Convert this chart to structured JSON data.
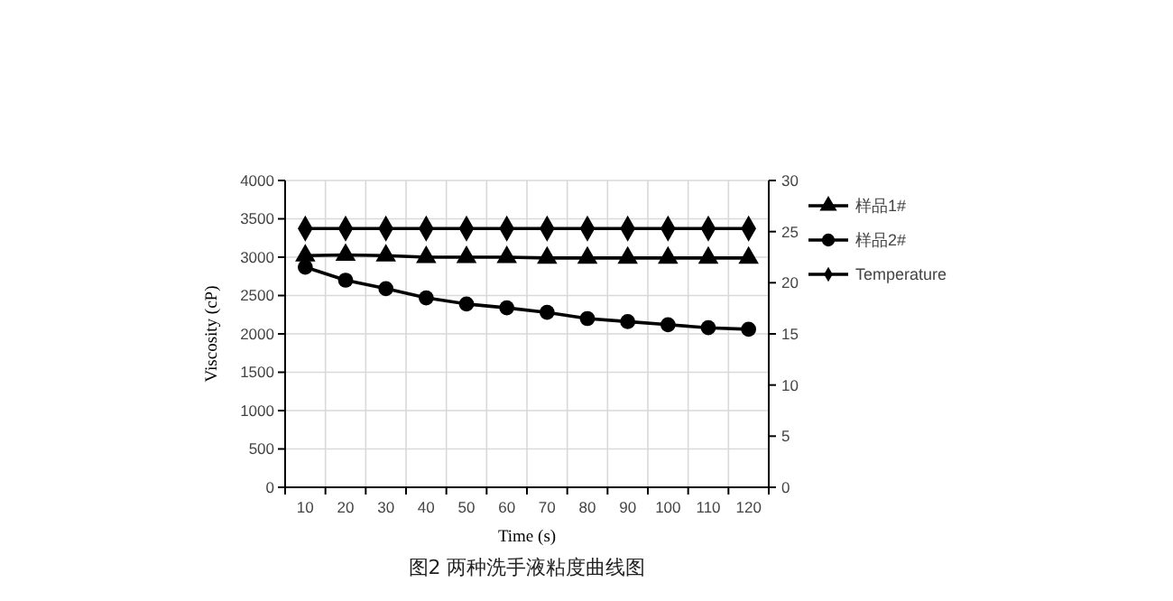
{
  "chart_data": {
    "type": "line",
    "xlabel": "Time (s)",
    "ylabel": "Viscosity (cP)",
    "categories": [
      "10",
      "20",
      "30",
      "40",
      "50",
      "60",
      "70",
      "80",
      "90",
      "100",
      "110",
      "120"
    ],
    "series": [
      {
        "name": "样品1#",
        "color": "#000000",
        "marker": "triangle",
        "values": [
          3020,
          3030,
          3020,
          3000,
          3000,
          3000,
          2990,
          2990,
          2990,
          2990,
          2990,
          2990
        ]
      },
      {
        "name": "样品2#",
        "color": "#000000",
        "marker": "circle",
        "values": [
          2870,
          2700,
          2590,
          2470,
          2390,
          2340,
          2280,
          2200,
          2160,
          2120,
          2080,
          2060
        ]
      },
      {
        "name": "Temperature",
        "color": "#000000",
        "marker": "diamond",
        "axis": "y2",
        "values": [
          25.3,
          25.3,
          25.3,
          25.3,
          25.3,
          25.3,
          25.3,
          25.3,
          25.3,
          25.3,
          25.3,
          25.3
        ]
      }
    ],
    "ylim": [
      0,
      4000
    ],
    "yticks": [
      0,
      500,
      1000,
      1500,
      2000,
      2500,
      3000,
      3500,
      4000
    ],
    "y2lim": [
      0,
      30
    ],
    "y2ticks": [
      0,
      5,
      10,
      15,
      20,
      25,
      30
    ],
    "grid": true,
    "legend": "right",
    "annotations": [
      "图2 两种洗手液粘度曲线图"
    ]
  }
}
